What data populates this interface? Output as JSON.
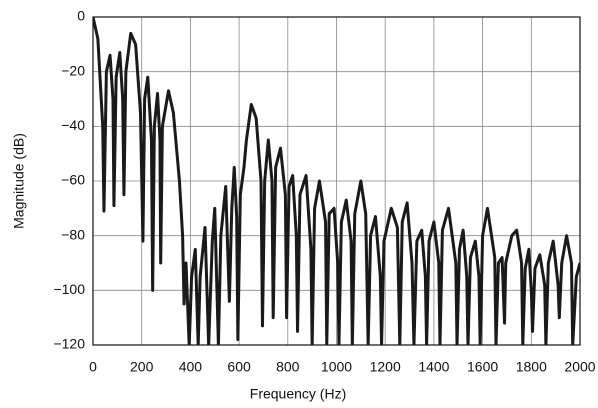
{
  "chart_data": {
    "type": "line",
    "x_label": "Frequency (Hz)",
    "y_label": "Magnitude (dB)",
    "x": [
      0,
      20,
      40,
      45,
      55,
      70,
      82,
      86,
      95,
      110,
      122,
      127,
      135,
      155,
      175,
      195,
      205,
      212,
      225,
      240,
      245,
      252,
      265,
      275,
      278,
      285,
      310,
      330,
      355,
      368,
      374,
      382,
      395,
      405,
      420,
      432,
      440,
      460,
      475,
      490,
      500,
      515,
      525,
      545,
      560,
      570,
      580,
      590,
      595,
      605,
      620,
      630,
      650,
      670,
      690,
      696,
      705,
      720,
      735,
      740,
      750,
      770,
      790,
      795,
      805,
      820,
      835,
      840,
      850,
      875,
      895,
      900,
      910,
      930,
      955,
      960,
      970,
      990,
      1005,
      1010,
      1020,
      1040,
      1060,
      1065,
      1075,
      1100,
      1120,
      1130,
      1140,
      1160,
      1180,
      1185,
      1195,
      1225,
      1250,
      1260,
      1270,
      1290,
      1310,
      1318,
      1330,
      1350,
      1365,
      1370,
      1380,
      1400,
      1420,
      1425,
      1435,
      1460,
      1490,
      1495,
      1505,
      1520,
      1535,
      1540,
      1550,
      1570,
      1585,
      1590,
      1600,
      1620,
      1650,
      1655,
      1665,
      1680,
      1690,
      1695,
      1720,
      1740,
      1760,
      1765,
      1775,
      1790,
      1800,
      1805,
      1815,
      1835,
      1855,
      1860,
      1870,
      1890,
      1910,
      1915,
      1925,
      1945,
      1965,
      1970,
      1985,
      2000
    ],
    "values": [
      0,
      -8,
      -40,
      -71,
      -20,
      -14,
      -30,
      -69,
      -22,
      -13,
      -30,
      -65,
      -20,
      -6,
      -10,
      -35,
      -82,
      -30,
      -22,
      -45,
      -100,
      -40,
      -28,
      -45,
      -90,
      -40,
      -27,
      -35,
      -60,
      -80,
      -105,
      -90,
      -120,
      -95,
      -85,
      -120,
      -95,
      -77,
      -120,
      -82,
      -70,
      -120,
      -80,
      -62,
      -104,
      -70,
      -55,
      -73,
      -118,
      -65,
      -55,
      -45,
      -32,
      -37,
      -60,
      -113,
      -60,
      -45,
      -60,
      -110,
      -55,
      -48,
      -65,
      -110,
      -62,
      -58,
      -80,
      -115,
      -65,
      -58,
      -85,
      -120,
      -70,
      -60,
      -75,
      -120,
      -72,
      -70,
      -90,
      -120,
      -75,
      -67,
      -82,
      -120,
      -72,
      -60,
      -72,
      -120,
      -80,
      -73,
      -95,
      -120,
      -82,
      -70,
      -77,
      -120,
      -75,
      -68,
      -90,
      -120,
      -82,
      -78,
      -95,
      -120,
      -82,
      -75,
      -90,
      -120,
      -78,
      -70,
      -90,
      -120,
      -85,
      -78,
      -95,
      -120,
      -88,
      -82,
      -95,
      -120,
      -80,
      -70,
      -88,
      -120,
      -90,
      -88,
      -112,
      -90,
      -80,
      -78,
      -90,
      -120,
      -92,
      -85,
      -100,
      -115,
      -92,
      -87,
      -98,
      -120,
      -90,
      -82,
      -98,
      -110,
      -90,
      -80,
      -90,
      -120,
      -95,
      -90
    ],
    "color": "#1a1a1a",
    "xlim": [
      0,
      2000
    ],
    "xticks": [
      0,
      200,
      400,
      600,
      800,
      1000,
      1200,
      1400,
      1600,
      1800,
      2000
    ],
    "ylim": [
      -120,
      0
    ],
    "yticks": [
      {
        "value": -120,
        "label": "−120"
      },
      {
        "value": -100,
        "label": "−100"
      },
      {
        "value": -80,
        "label": "−80"
      },
      {
        "value": -60,
        "label": "−60"
      },
      {
        "value": -40,
        "label": "−40"
      },
      {
        "value": -20,
        "label": "−20"
      },
      0
    ],
    "grid": true
  }
}
